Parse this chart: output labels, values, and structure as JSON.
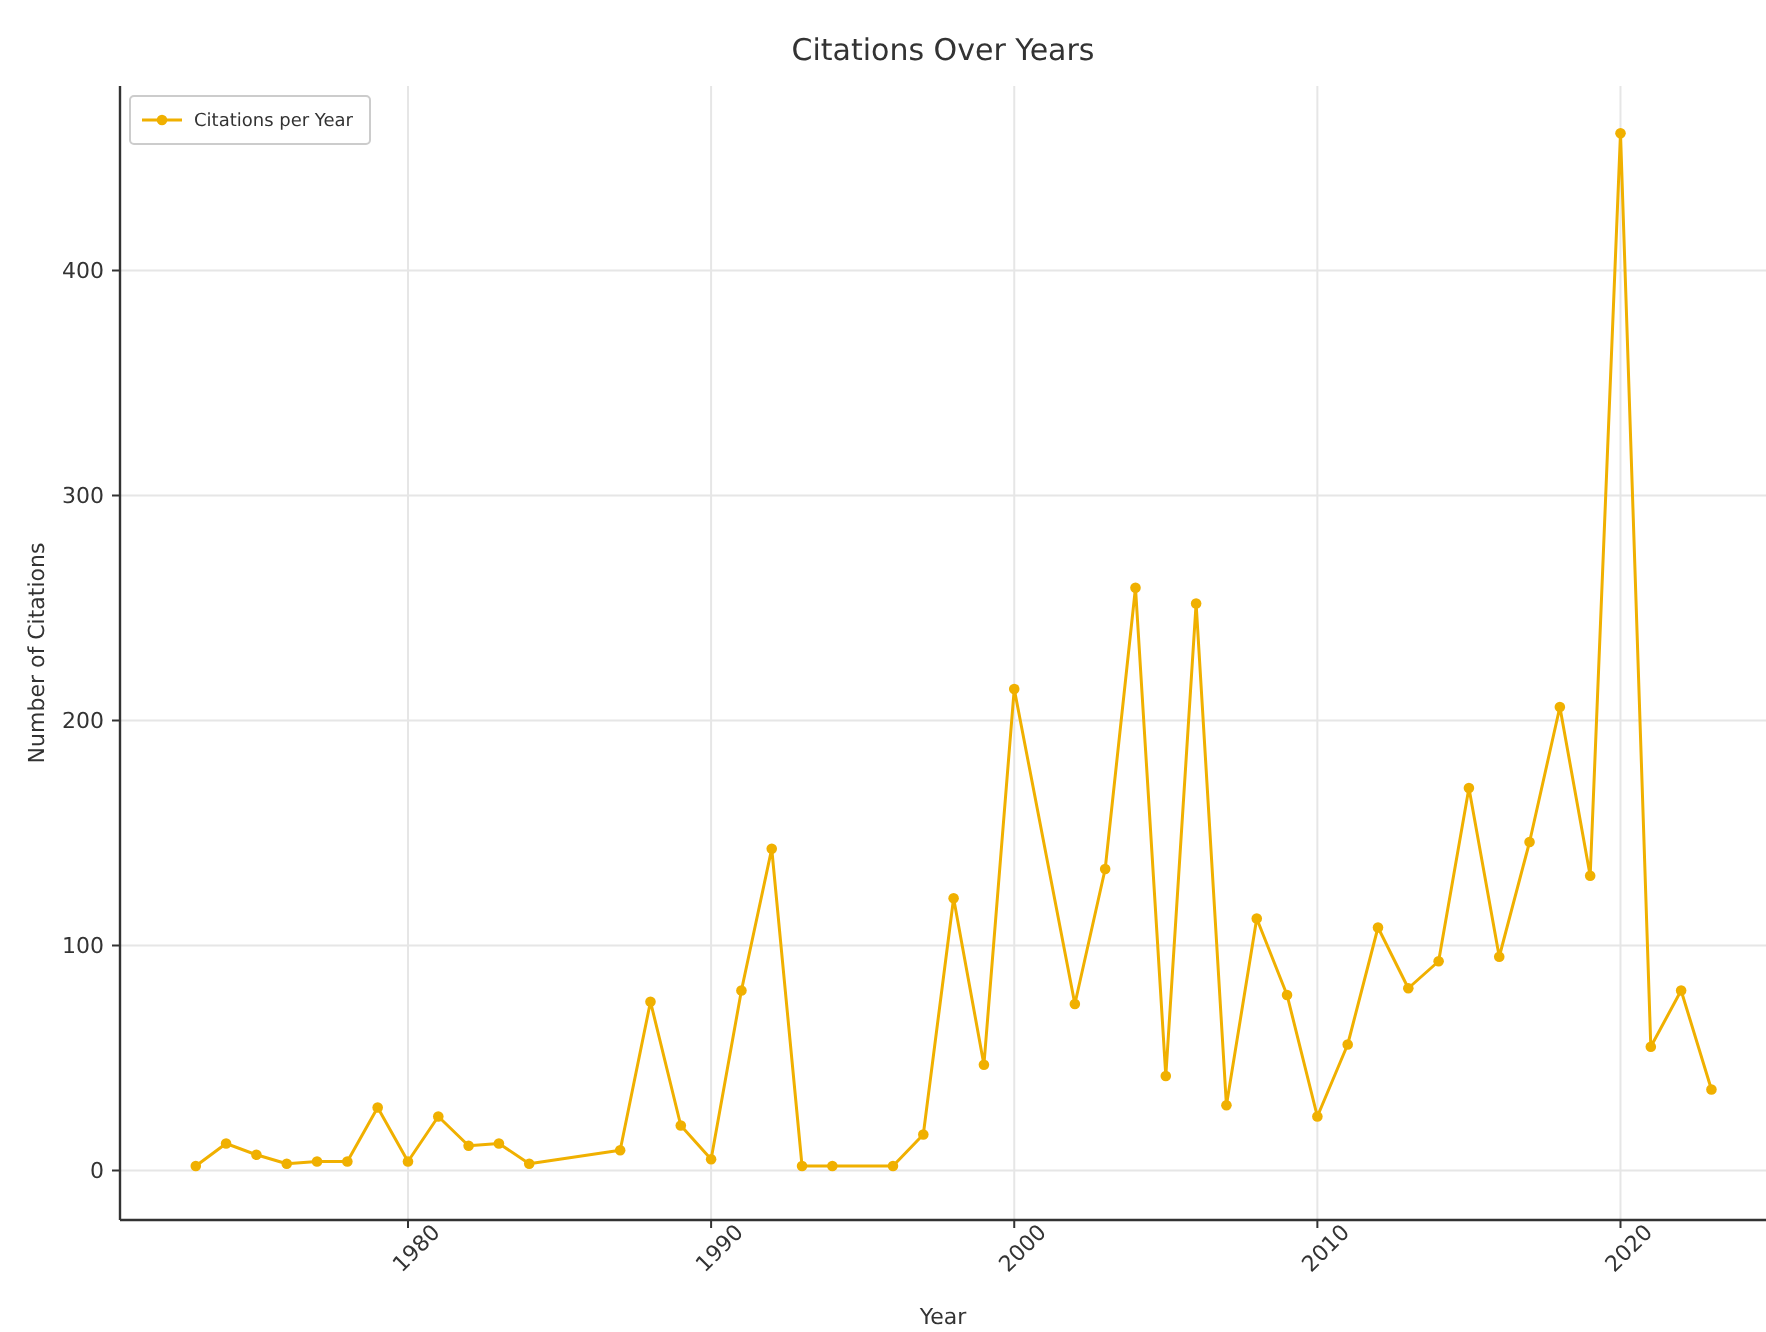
{
  "chart_data": {
    "type": "line",
    "title": "Citations Over Years",
    "xlabel": "Year",
    "ylabel": "Number of Citations",
    "x": [
      1973,
      1974,
      1975,
      1976,
      1977,
      1978,
      1979,
      1980,
      1981,
      1982,
      1983,
      1984,
      1987,
      1988,
      1989,
      1990,
      1991,
      1992,
      1993,
      1994,
      1996,
      1997,
      1998,
      1999,
      2000,
      2002,
      2003,
      2004,
      2005,
      2006,
      2007,
      2008,
      2009,
      2010,
      2011,
      2012,
      2013,
      2014,
      2015,
      2016,
      2017,
      2018,
      2019,
      2020,
      2021,
      2022,
      2023
    ],
    "series": [
      {
        "name": "Citations per Year",
        "color": "#f0b000",
        "values": [
          2,
          12,
          7,
          3,
          4,
          4,
          28,
          4,
          24,
          11,
          12,
          3,
          9,
          75,
          20,
          5,
          80,
          143,
          2,
          2,
          2,
          16,
          121,
          47,
          214,
          74,
          134,
          259,
          42,
          252,
          29,
          112,
          78,
          24,
          56,
          108,
          81,
          93,
          170,
          95,
          146,
          206,
          131,
          461,
          55,
          80,
          36
        ]
      }
    ],
    "xlim": [
      1970.5,
      2024.8
    ],
    "ylim": [
      -22,
      482
    ],
    "xticks": [
      1980,
      1990,
      2000,
      2010,
      2020
    ],
    "yticks": [
      0,
      100,
      200,
      300,
      400
    ],
    "grid": true,
    "legend": "top left",
    "marker": "circle",
    "line_style": "solid"
  }
}
